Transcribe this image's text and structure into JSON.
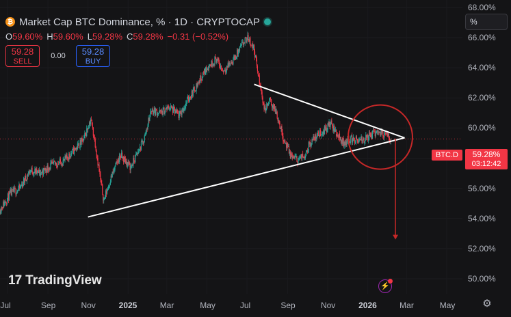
{
  "header": {
    "title": "Market Cap BTC Dominance, % · 1D · CRYPTOCAP",
    "icon": "bitcoin-icon",
    "ohlc": [
      {
        "k": "O",
        "v": "59.60%"
      },
      {
        "k": "H",
        "v": "59.60%"
      },
      {
        "k": "L",
        "v": "59.28%"
      },
      {
        "k": "C",
        "v": "59.28%"
      },
      {
        "k": "",
        "v": "−0.31 (−0.52%)"
      }
    ]
  },
  "trade": {
    "sell_price": "59.28",
    "sell_label": "SELL",
    "spread": "0.00",
    "buy_price": "59.28",
    "buy_label": "BUY"
  },
  "scale_mode": "%",
  "branding": {
    "logo_mark": "17",
    "logo_text": "TradingView"
  },
  "price_tag": {
    "symbol": "BTC.D",
    "price": "59.28%",
    "countdown": "03:12:42"
  },
  "colors": {
    "background": "#141416",
    "up": "#26a69a",
    "down": "#f23645",
    "annotation": "#c62828",
    "trendline": "#ffffff"
  },
  "chart_data": {
    "type": "candlestick",
    "title": "Market Cap BTC Dominance, % · 1D · CRYPTOCAP",
    "ylim": [
      49,
      68.5
    ],
    "y_ticks": [
      "50.00%",
      "52.00%",
      "54.00%",
      "56.00%",
      "58.00%",
      "60.00%",
      "62.00%",
      "64.00%",
      "66.00%",
      "68.00%"
    ],
    "y_tick_values": [
      50,
      52,
      54,
      56,
      58,
      60,
      62,
      64,
      66,
      68
    ],
    "x_ticks": [
      {
        "label": "Jul",
        "date": "2024-07-01",
        "bold": false
      },
      {
        "label": "Sep",
        "date": "2024-09-01",
        "bold": false
      },
      {
        "label": "Nov",
        "date": "2024-11-01",
        "bold": false
      },
      {
        "label": "2025",
        "date": "2025-01-01",
        "bold": true
      },
      {
        "label": "Mar",
        "date": "2025-03-01",
        "bold": false
      },
      {
        "label": "May",
        "date": "2025-05-01",
        "bold": false
      },
      {
        "label": "Jul",
        "date": "2025-07-01",
        "bold": false
      },
      {
        "label": "Sep",
        "date": "2025-09-01",
        "bold": false
      },
      {
        "label": "Nov",
        "date": "2025-11-01",
        "bold": false
      },
      {
        "label": "2026",
        "date": "2026-01-01",
        "bold": true
      },
      {
        "label": "Mar",
        "date": "2026-03-01",
        "bold": false
      },
      {
        "label": "May",
        "date": "2026-05-01",
        "bold": false
      }
    ],
    "x_range": [
      "2024-06-20",
      "2026-05-25"
    ],
    "last_price": 59.28,
    "price_path": [
      [
        "2024-06-20",
        54.6
      ],
      [
        "2024-07-05",
        55.6
      ],
      [
        "2024-07-20",
        56.0
      ],
      [
        "2024-08-05",
        57.2
      ],
      [
        "2024-08-20",
        57.0
      ],
      [
        "2024-09-05",
        57.5
      ],
      [
        "2024-09-25",
        57.8
      ],
      [
        "2024-10-10",
        58.5
      ],
      [
        "2024-10-25",
        59.2
      ],
      [
        "2024-11-05",
        60.6
      ],
      [
        "2024-11-12",
        59.0
      ],
      [
        "2024-11-20",
        56.5
      ],
      [
        "2024-11-25",
        55.2
      ],
      [
        "2024-12-05",
        56.6
      ],
      [
        "2024-12-20",
        58.2
      ],
      [
        "2025-01-05",
        57.4
      ],
      [
        "2025-01-15",
        58.3
      ],
      [
        "2025-01-25",
        59.2
      ],
      [
        "2025-02-05",
        61.2
      ],
      [
        "2025-02-20",
        61.0
      ],
      [
        "2025-03-05",
        61.4
      ],
      [
        "2025-03-20",
        60.8
      ],
      [
        "2025-04-01",
        61.8
      ],
      [
        "2025-04-15",
        62.8
      ],
      [
        "2025-05-01",
        64.0
      ],
      [
        "2025-05-15",
        64.6
      ],
      [
        "2025-05-25",
        63.8
      ],
      [
        "2025-06-10",
        64.5
      ],
      [
        "2025-06-25",
        65.6
      ],
      [
        "2025-07-03",
        66.0
      ],
      [
        "2025-07-12",
        65.2
      ],
      [
        "2025-07-20",
        63.0
      ],
      [
        "2025-07-28",
        61.2
      ],
      [
        "2025-08-05",
        61.8
      ],
      [
        "2025-08-15",
        61.0
      ],
      [
        "2025-08-25",
        59.4
      ],
      [
        "2025-09-05",
        58.2
      ],
      [
        "2025-09-15",
        57.9
      ],
      [
        "2025-09-25",
        58.1
      ],
      [
        "2025-10-05",
        59.0
      ],
      [
        "2025-10-15",
        59.5
      ],
      [
        "2025-10-25",
        59.8
      ],
      [
        "2025-11-05",
        60.3
      ],
      [
        "2025-11-15",
        59.6
      ],
      [
        "2025-11-25",
        59.0
      ],
      [
        "2025-12-05",
        59.3
      ],
      [
        "2025-12-20",
        59.1
      ],
      [
        "2026-01-05",
        59.5
      ],
      [
        "2026-01-15",
        59.8
      ],
      [
        "2026-01-25",
        59.6
      ],
      [
        "2026-02-05",
        59.28
      ]
    ],
    "trendlines": [
      {
        "name": "lower",
        "from": [
          "2024-11-01",
          54.1
        ],
        "to": [
          "2026-02-26",
          59.35
        ]
      },
      {
        "name": "upper",
        "from": [
          "2025-07-12",
          62.9
        ],
        "to": [
          "2026-02-26",
          59.35
        ]
      }
    ],
    "annotations": [
      {
        "type": "circle",
        "center": [
          "2026-01-20",
          59.4
        ]
      },
      {
        "type": "arrow",
        "from": [
          "2026-02-12",
          59.3
        ],
        "to": [
          "2026-02-12",
          52.6
        ]
      }
    ]
  }
}
